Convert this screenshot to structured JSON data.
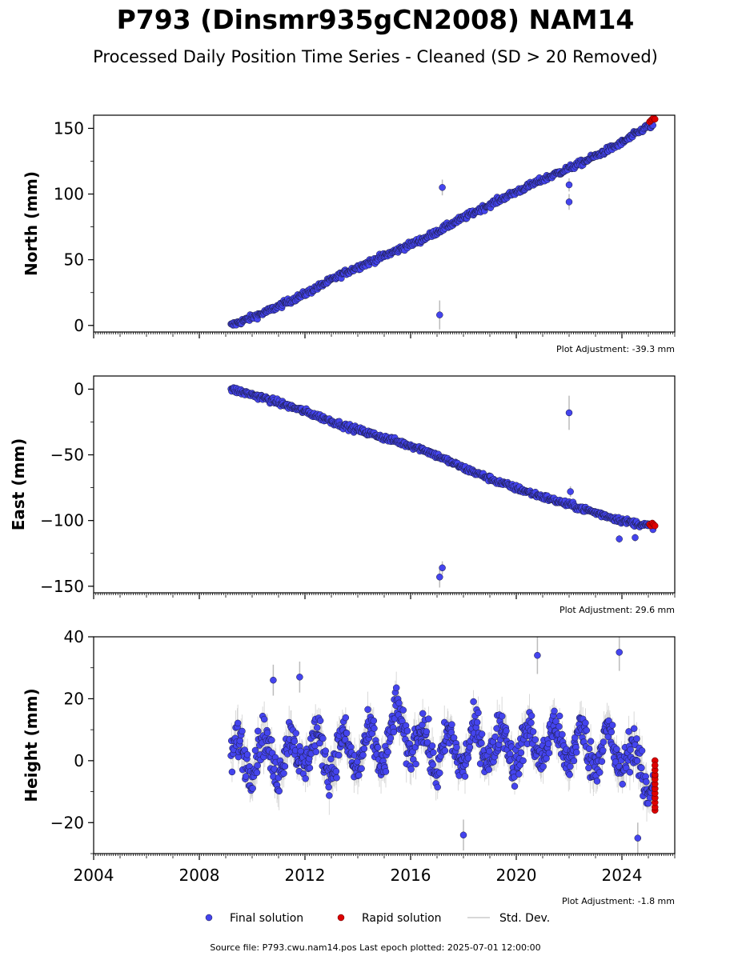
{
  "title": "P793 (Dinsmr935gCN2008) NAM14",
  "subtitle": "Processed Daily Position Time Series - Cleaned (SD > 20 Removed)",
  "footer": "Source file: P793.cwu.nam14.pos  Last epoch plotted: 2025-07-01 12:00:00",
  "legend": [
    {
      "label": "Final solution",
      "color": "#4444ee"
    },
    {
      "label": "Rapid solution",
      "color": "#dd0000"
    },
    {
      "label": "Std. Dev.",
      "color": "#cccccc"
    }
  ],
  "colors": {
    "final": "#4444ee",
    "rapid": "#dd0000",
    "stddev": "#bbbbbb",
    "edge": "#1a1a3a"
  },
  "chart_data": [
    {
      "type": "scatter",
      "ylabel": "North (mm)",
      "adjustment": "Plot Adjustment: -39.3 mm",
      "xlim": [
        2004,
        2026
      ],
      "ylim": [
        -5,
        160
      ],
      "yticks": [
        0,
        50,
        100,
        150
      ],
      "ytick_labels": [
        "0",
        "50",
        "100",
        "150"
      ],
      "series": [
        {
          "name": "Final solution",
          "x": [
            2009.2,
            2010.5,
            2012.0,
            2013.5,
            2015.0,
            2016.5,
            2018.0,
            2019.5,
            2021.0,
            2022.5,
            2024.0,
            2025.0
          ],
          "y": [
            0,
            10,
            24,
            40,
            53,
            66,
            82,
            97,
            111,
            124,
            139,
            152
          ]
        },
        {
          "name": "Rapid solution",
          "x": [
            2025.05,
            2025.1,
            2025.15,
            2025.2,
            2025.25
          ],
          "y": [
            155,
            156,
            157,
            158,
            157
          ]
        }
      ],
      "outliers": [
        {
          "x": 2017.1,
          "y": 8,
          "err": 11
        },
        {
          "x": 2017.2,
          "y": 105,
          "err": 6
        },
        {
          "x": 2022.0,
          "y": 107,
          "err": 5
        },
        {
          "x": 2022.0,
          "y": 94,
          "err": 6
        }
      ]
    },
    {
      "type": "scatter",
      "ylabel": "East (mm)",
      "adjustment": "Plot Adjustment: 29.6 mm",
      "xlim": [
        2004,
        2026
      ],
      "ylim": [
        -155,
        10
      ],
      "yticks": [
        0,
        -50,
        -100,
        -150
      ],
      "ytick_labels": [
        "0",
        "−50",
        "−100",
        "−150"
      ],
      "series": [
        {
          "name": "Final solution",
          "x": [
            2009.2,
            2010.5,
            2012.0,
            2013.5,
            2015.0,
            2016.5,
            2018.0,
            2019.5,
            2021.0,
            2022.5,
            2024.0,
            2025.0
          ],
          "y": [
            0,
            -7,
            -17,
            -28,
            -37,
            -46,
            -60,
            -72,
            -82,
            -91,
            -100,
            -104
          ]
        },
        {
          "name": "Rapid solution",
          "x": [
            2025.05,
            2025.1,
            2025.15,
            2025.2,
            2025.25
          ],
          "y": [
            -103,
            -104,
            -102,
            -103,
            -104
          ]
        }
      ],
      "outliers": [
        {
          "x": 2022.0,
          "y": -18,
          "err": 13
        },
        {
          "x": 2022.05,
          "y": -78,
          "err": 4
        },
        {
          "x": 2017.1,
          "y": -143,
          "err": 8
        },
        {
          "x": 2017.2,
          "y": -136,
          "err": 5
        },
        {
          "x": 2023.9,
          "y": -114,
          "err": 3
        },
        {
          "x": 2024.5,
          "y": -113,
          "err": 3
        }
      ]
    },
    {
      "type": "scatter",
      "ylabel": "Height (mm)",
      "adjustment": "Plot Adjustment: -1.8 mm",
      "xlim": [
        2004,
        2026
      ],
      "ylim": [
        -30,
        40
      ],
      "yticks": [
        -20,
        0,
        20,
        40
      ],
      "ytick_labels": [
        "−20",
        "0",
        "20",
        "40"
      ],
      "xticks": [
        2004,
        2008,
        2012,
        2016,
        2020,
        2024
      ],
      "xtick_labels": [
        "2004",
        "2008",
        "2012",
        "2016",
        "2020",
        "2024"
      ],
      "series": [
        {
          "name": "Final solution",
          "x": [
            2009.2,
            2010.0,
            2011.0,
            2012.0,
            2013.0,
            2014.0,
            2015.0,
            2015.5,
            2016.0,
            2017.0,
            2018.0,
            2019.0,
            2020.0,
            2021.0,
            2022.0,
            2023.0,
            2024.0,
            2025.0
          ],
          "y": [
            0,
            3,
            1,
            4,
            2,
            3,
            4,
            12,
            8,
            2,
            4,
            6,
            4,
            6,
            5,
            4,
            3,
            -5
          ]
        },
        {
          "name": "Rapid solution",
          "x": [
            2025.25,
            2025.25,
            2025.25,
            2025.25,
            2025.25
          ],
          "y": [
            0,
            -5,
            -9,
            -12,
            -16
          ]
        }
      ],
      "outliers": [
        {
          "x": 2010.8,
          "y": 26,
          "err": 5
        },
        {
          "x": 2011.8,
          "y": 27,
          "err": 5
        },
        {
          "x": 2018.0,
          "y": -24,
          "err": 5
        },
        {
          "x": 2020.8,
          "y": 34,
          "err": 6
        },
        {
          "x": 2023.9,
          "y": 35,
          "err": 6
        },
        {
          "x": 2024.6,
          "y": -25,
          "err": 5
        }
      ]
    }
  ]
}
